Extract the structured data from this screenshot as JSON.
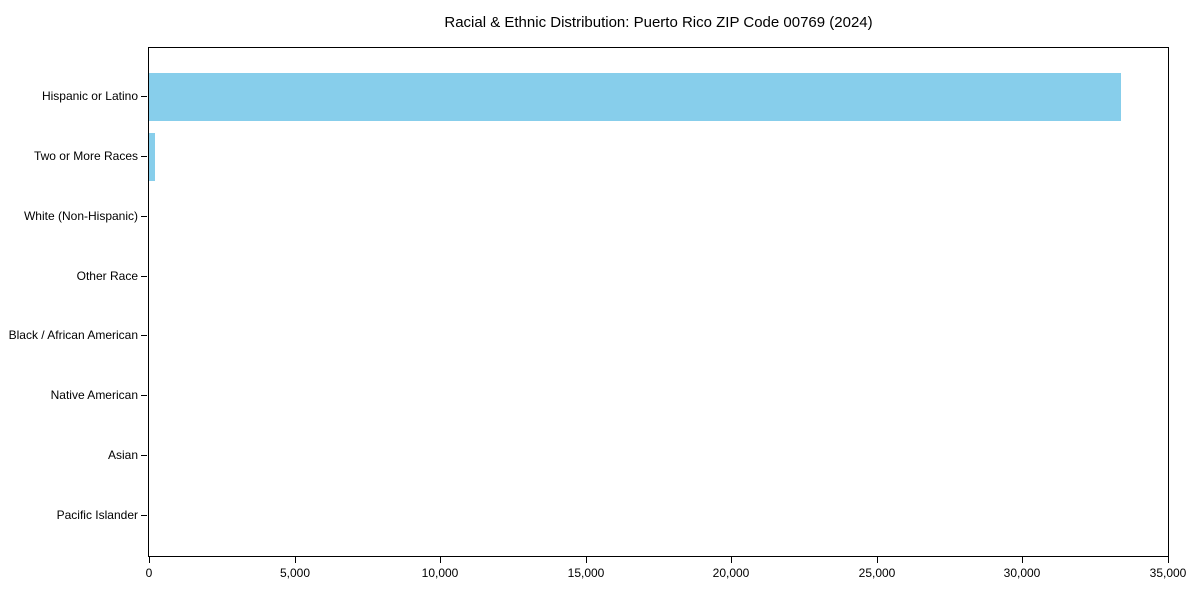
{
  "chart_data": {
    "type": "bar",
    "orientation": "horizontal",
    "title": "Racial & Ethnic Distribution: Puerto Rico ZIP Code 00769 (2024)",
    "categories": [
      "Hispanic or Latino",
      "Two or More Races",
      "White (Non-Hispanic)",
      "Other Race",
      "Black / African American",
      "Native American",
      "Asian",
      "Pacific Islander"
    ],
    "values": [
      33390,
      215,
      0,
      0,
      0,
      0,
      0,
      0
    ],
    "xlabel": "",
    "ylabel": "",
    "xlim": [
      0,
      35000
    ],
    "xticks": [
      0,
      5000,
      10000,
      15000,
      20000,
      25000,
      30000,
      35000
    ],
    "xtick_labels": [
      "0",
      "5,000",
      "10,000",
      "15,000",
      "20,000",
      "25,000",
      "30,000",
      "35,000"
    ],
    "bar_color": "#87CEEB",
    "grid": false,
    "legend_position": "none",
    "plot_border": true
  }
}
